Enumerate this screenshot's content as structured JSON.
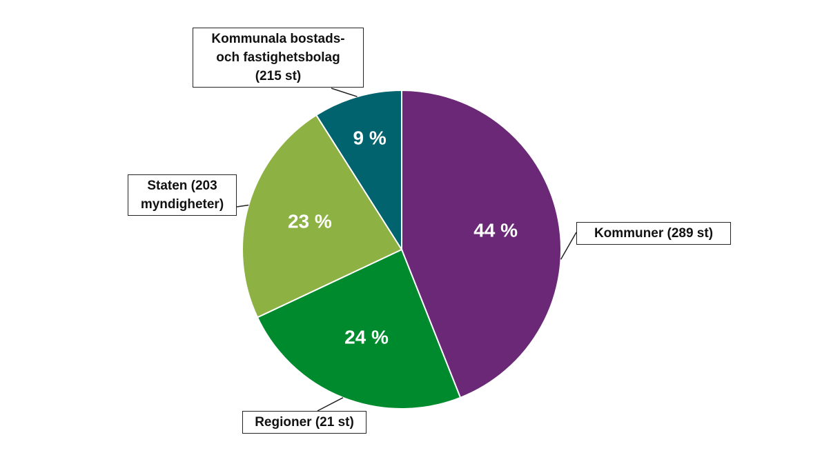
{
  "chart_data": {
    "type": "pie",
    "categories": [
      "Kommuner (289 st)",
      "Regioner (21 st)",
      "Staten (203\nmyndigheter)",
      "Kommunala bostads-\noch fastighetsbolag\n(215 st)"
    ],
    "values": [
      44,
      24,
      23,
      9
    ],
    "value_labels": [
      "44 %",
      "24 %",
      "23 %",
      "9 %"
    ],
    "colors": [
      "#6a2877",
      "#008a2e",
      "#8db243",
      "#00636e"
    ]
  }
}
